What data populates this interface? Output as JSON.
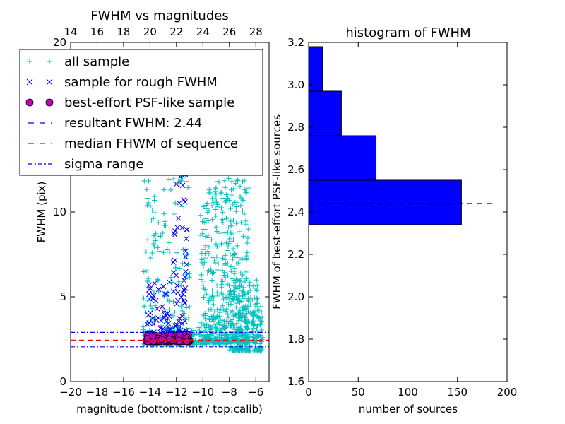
{
  "chart_data": [
    {
      "type": "scatter",
      "title": "FWHM vs magnitudes",
      "xlabel": "magnitude (bottom:isnt / top:calib)",
      "ylabel": "FWHM (pix)",
      "xlim": [
        -20,
        -5
      ],
      "ylim": [
        0,
        20
      ],
      "x_ticks": [
        -20,
        -18,
        -16,
        -14,
        -12,
        -10,
        -8,
        -6
      ],
      "x_tick_labels": [
        "−20",
        "−18",
        "−16",
        "−14",
        "−12",
        "−10",
        "−8",
        "−6"
      ],
      "y_ticks": [
        0,
        5,
        10
      ],
      "y_tick_labels": [
        "0",
        "5",
        "10"
      ],
      "top_ticks": [
        14,
        16,
        18,
        20,
        22,
        24,
        26,
        28
      ],
      "top_tick_labels": [
        "14",
        "16",
        "18",
        "20",
        "22",
        "24",
        "26",
        "28"
      ],
      "top_axis_offset": 34,
      "grid": false,
      "legend_position": "upper-left",
      "legend": [
        {
          "label": "all sample",
          "marker": "plus",
          "color": "#00bfbf"
        },
        {
          "label": "sample for rough FWHM",
          "marker": "x",
          "color": "#0000ff"
        },
        {
          "label": "best-effort PSF-like sample",
          "marker": "circle",
          "color": "#bf00bf"
        },
        {
          "label": "resultant FWHM: 2.44",
          "marker": "dash",
          "color": "#0000ff"
        },
        {
          "label": "median FHWM of sequence",
          "marker": "dash",
          "color": "#ff0000"
        },
        {
          "label": "sigma range",
          "marker": "dashdot",
          "color": "#0000ff"
        }
      ],
      "series": [
        {
          "name": "all sample",
          "color": "#00bfbf",
          "marker": "plus",
          "clusters": [
            {
              "x_range": [
                -14.5,
                -11.0
              ],
              "y_range": [
                2.2,
                19.5
              ],
              "count": 260
            },
            {
              "x_range": [
                -10.2,
                -6.5
              ],
              "y_range": [
                2.3,
                13.0
              ],
              "count": 500
            },
            {
              "x_range": [
                -8.0,
                -5.5
              ],
              "y_range": [
                1.8,
                6.0
              ],
              "count": 320
            },
            {
              "x_range": [
                -14.5,
                -8.0
              ],
              "y_range": [
                2.2,
                3.2
              ],
              "count": 180
            }
          ]
        },
        {
          "name": "sample for rough FWHM",
          "color": "#0000ff",
          "marker": "x",
          "clusters": [
            {
              "x_range": [
                -14.2,
                -12.5
              ],
              "y_range": [
                2.4,
                6.5
              ],
              "count": 50
            },
            {
              "x_range": [
                -12.3,
                -11.2
              ],
              "y_range": [
                2.5,
                13.0
              ],
              "count": 70
            },
            {
              "x_range": [
                -13.5,
                -11.0
              ],
              "y_range": [
                2.4,
                3.2
              ],
              "count": 40
            }
          ]
        },
        {
          "name": "best-effort PSF-like sample",
          "color": "#bf00bf",
          "marker": "circle",
          "clusters": [
            {
              "x_range": [
                -14.3,
                -11.0
              ],
              "y_range": [
                2.35,
                2.8
              ],
              "count": 150
            }
          ]
        }
      ],
      "lines": [
        {
          "name": "resultant FWHM",
          "y": 2.44,
          "color": "#0000ff",
          "style": "dashed"
        },
        {
          "name": "median FHWM of sequence",
          "y": 2.44,
          "color": "#ff0000",
          "style": "dashed"
        },
        {
          "name": "sigma range upper",
          "y": 2.9,
          "color": "#0000ff",
          "style": "dashdot"
        },
        {
          "name": "sigma range lower",
          "y": 2.05,
          "color": "#0000ff",
          "style": "dashdot"
        }
      ]
    },
    {
      "type": "bar",
      "orientation": "horizontal",
      "title": "histogram of FWHM",
      "xlabel": "number of sources",
      "ylabel": "FWHM of best-effort PSF-like sources",
      "xlim": [
        0,
        200
      ],
      "ylim": [
        1.6,
        3.2
      ],
      "x_ticks": [
        0,
        50,
        100,
        150,
        200
      ],
      "x_tick_labels": [
        "0",
        "50",
        "100",
        "150",
        "200"
      ],
      "y_ticks": [
        1.6,
        1.8,
        2.0,
        2.2,
        2.4,
        2.6,
        2.8,
        3.0,
        3.2
      ],
      "y_tick_labels": [
        "1.6",
        "1.8",
        "2.0",
        "2.2",
        "2.4",
        "2.6",
        "2.8",
        "3.0",
        "3.2"
      ],
      "bar_color": "#0000ff",
      "bins": [
        {
          "y0": 2.34,
          "y1": 2.55,
          "count": 154
        },
        {
          "y0": 2.55,
          "y1": 2.76,
          "count": 68
        },
        {
          "y0": 2.76,
          "y1": 2.97,
          "count": 33
        },
        {
          "y0": 2.97,
          "y1": 3.18,
          "count": 14
        }
      ],
      "reference_line": {
        "y": 2.44,
        "x_range": [
          0,
          185
        ],
        "color": "#000000",
        "style": "dashed"
      }
    }
  ]
}
